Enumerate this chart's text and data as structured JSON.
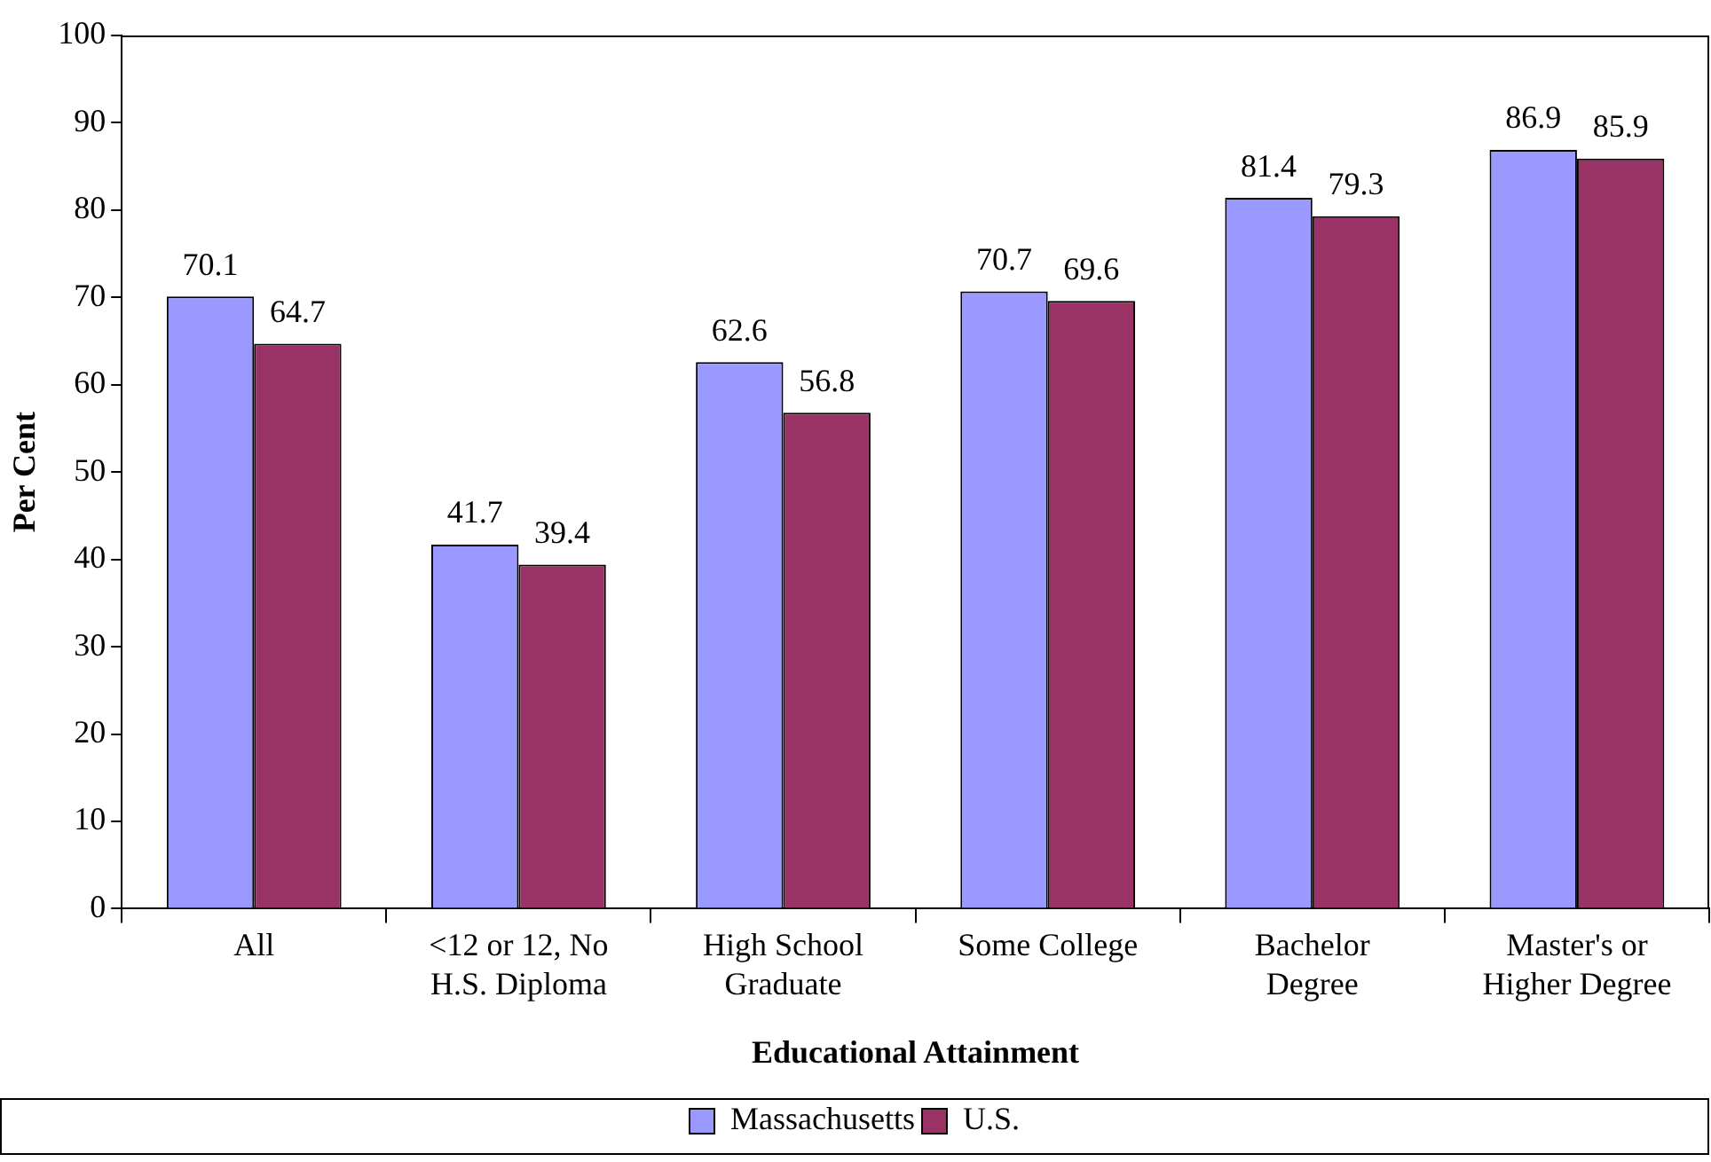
{
  "chart_data": {
    "type": "bar",
    "xlabel": "Educational Attainment",
    "ylabel": "Per Cent",
    "categories": [
      "All",
      "<12 or 12, No H.S. Diploma",
      "High School Graduate",
      "Some College",
      "Bachelor Degree",
      "Master's or Higher Degree"
    ],
    "series": [
      {
        "name": "Massachusetts",
        "color": "#9999ff",
        "values": [
          70.1,
          41.7,
          62.6,
          70.7,
          81.4,
          86.9
        ]
      },
      {
        "name": "U.S.",
        "color": "#993366",
        "values": [
          64.7,
          39.4,
          56.8,
          69.6,
          79.3,
          85.9
        ]
      }
    ],
    "ylim": [
      0,
      100
    ],
    "yticks": [
      0,
      10,
      20,
      30,
      40,
      50,
      60,
      70,
      80,
      90,
      100
    ],
    "grid": false,
    "legend": "bottom",
    "data_labels": true
  }
}
